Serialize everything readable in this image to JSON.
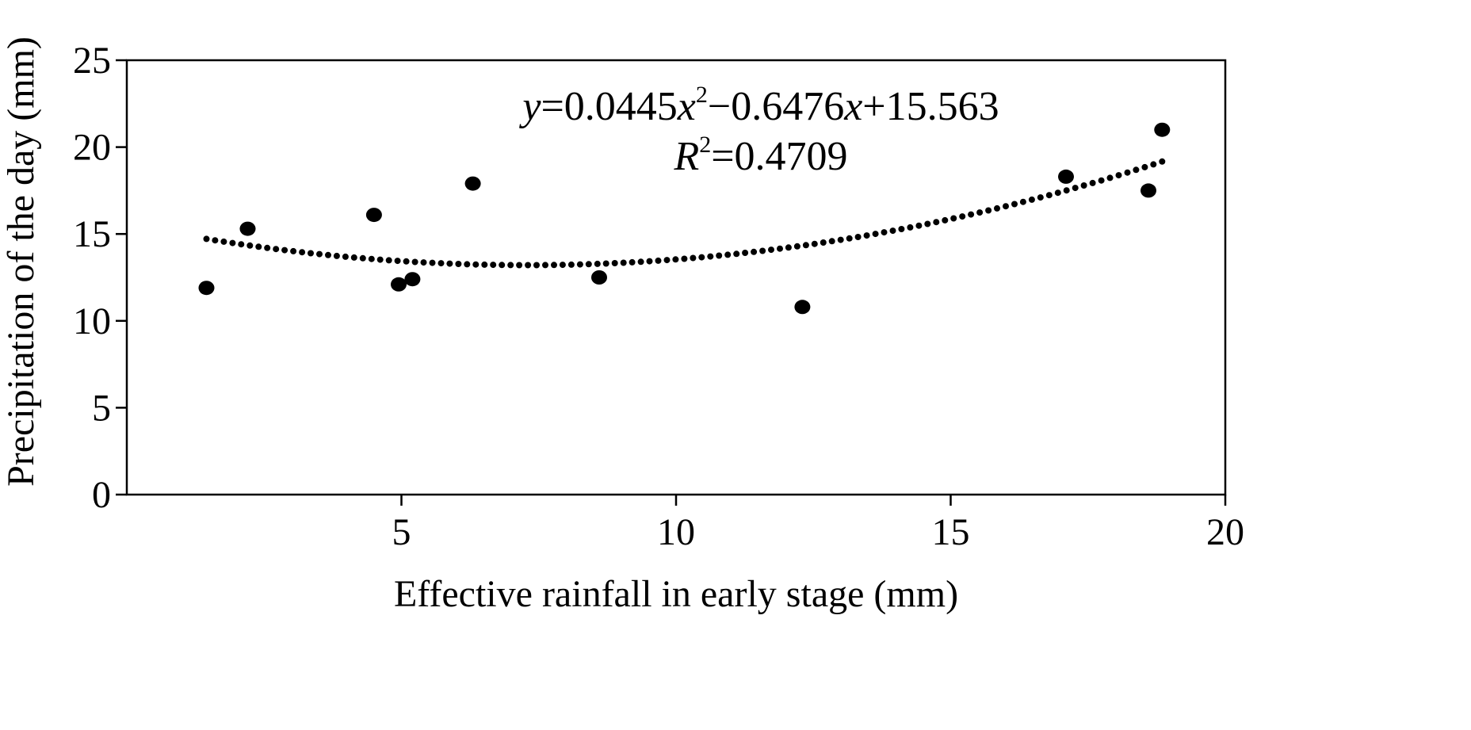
{
  "chart_data": {
    "type": "scatter",
    "title": "",
    "xlabel": "Effective rainfall in early stage (mm)",
    "ylabel": "Precipitation of the day (mm)",
    "xlim": [
      0,
      20
    ],
    "ylim": [
      0,
      25
    ],
    "x_ticks": [
      "5",
      "10",
      "15",
      "20"
    ],
    "y_ticks": [
      "0",
      "5",
      "10",
      "15",
      "20",
      "25"
    ],
    "grid": false,
    "legend": "none",
    "marker_color": "#000000",
    "points": [
      {
        "x": 1.45,
        "y": 11.9
      },
      {
        "x": 2.2,
        "y": 15.3
      },
      {
        "x": 4.5,
        "y": 16.1
      },
      {
        "x": 4.95,
        "y": 12.1
      },
      {
        "x": 5.2,
        "y": 12.4
      },
      {
        "x": 6.3,
        "y": 17.9
      },
      {
        "x": 8.6,
        "y": 12.5
      },
      {
        "x": 12.3,
        "y": 10.8
      },
      {
        "x": 17.1,
        "y": 18.3
      },
      {
        "x": 18.6,
        "y": 17.5
      },
      {
        "x": 18.85,
        "y": 21.0
      }
    ],
    "trendline": {
      "type": "polynomial",
      "order": 2,
      "coefficients": {
        "a": 0.0445,
        "b": -0.6476,
        "c": 15.563
      },
      "x_range": [
        1.45,
        18.85
      ],
      "style": "dotted",
      "equation": {
        "y_var": "y",
        "eq_a": "=0.0445",
        "x_var1": "x",
        "sup2": "2",
        "eq_b": "−0.6476",
        "x_var2": "x",
        "eq_c": "+15.563"
      },
      "r2": {
        "r_var": "R",
        "sup2": "2",
        "value": "=0.4709"
      }
    }
  }
}
